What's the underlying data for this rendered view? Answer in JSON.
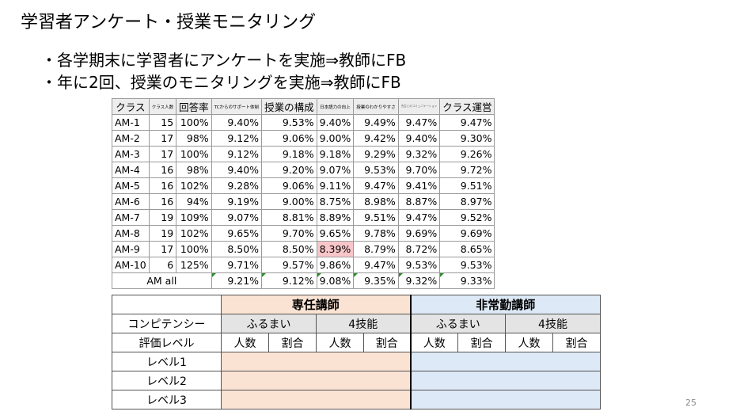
{
  "title": "学習者アンケート・授業モニタリング",
  "bullets": [
    "・各学期末に学習者にアンケートを実施⇒教師にFB",
    "・年に2回、授業のモニタリングを実施⇒教師にFB"
  ],
  "survey_table": {
    "headers": [
      "クラス",
      "クラス人数",
      "回答率",
      "TCからのサポート体制",
      "授業の構成",
      "日本語力の向上",
      "授業のわかりやすさ",
      "先生とのコミュニケーション",
      "クラス運営"
    ],
    "rows": [
      [
        "AM-1",
        "15",
        "100%",
        "9.40%",
        "9.53%",
        "9.40%",
        "9.49%",
        "9.47%",
        "9.47%"
      ],
      [
        "AM-2",
        "17",
        "98%",
        "9.12%",
        "9.06%",
        "9.00%",
        "9.42%",
        "9.40%",
        "9.30%"
      ],
      [
        "AM-3",
        "17",
        "100%",
        "9.12%",
        "9.18%",
        "9.18%",
        "9.29%",
        "9.32%",
        "9.26%"
      ],
      [
        "AM-4",
        "16",
        "98%",
        "9.40%",
        "9.20%",
        "9.07%",
        "9.53%",
        "9.70%",
        "9.72%"
      ],
      [
        "AM-5",
        "16",
        "102%",
        "9.28%",
        "9.06%",
        "9.11%",
        "9.47%",
        "9.41%",
        "9.51%"
      ],
      [
        "AM-6",
        "16",
        "94%",
        "9.19%",
        "9.00%",
        "8.75%",
        "8.98%",
        "8.87%",
        "8.97%"
      ],
      [
        "AM-7",
        "19",
        "109%",
        "9.07%",
        "8.81%",
        "8.89%",
        "9.51%",
        "9.47%",
        "9.52%"
      ],
      [
        "AM-8",
        "19",
        "102%",
        "9.65%",
        "9.70%",
        "9.65%",
        "9.78%",
        "9.69%",
        "9.69%"
      ],
      [
        "AM-9",
        "17",
        "100%",
        "8.50%",
        "8.50%",
        "8.39%",
        "8.79%",
        "8.72%",
        "8.65%"
      ],
      [
        "AM-10",
        "6",
        "125%",
        "9.71%",
        "9.57%",
        "9.86%",
        "9.47%",
        "9.53%",
        "9.53%"
      ]
    ],
    "total_label": "AM all",
    "total_values": [
      "9.21%",
      "9.12%",
      "9.08%",
      "9.35%",
      "9.32%",
      "9.33%"
    ]
  },
  "eval_table": {
    "group_a": "専任講師",
    "group_b": "非常勤講師",
    "competency_label": "コンピテンシー",
    "competencies": [
      "ふるまい",
      "4技能",
      "ふるまい",
      "4技能"
    ],
    "level_label": "評価レベル",
    "sub_cols": [
      "人数",
      "割合",
      "人数",
      "割合",
      "人数",
      "割合",
      "人数",
      "割合"
    ],
    "levels": [
      "レベル1",
      "レベル2",
      "レベル3"
    ]
  },
  "page_number": "25",
  "colors": {
    "highlight": "#f8c6c9",
    "fulltime": "#fbe3d4",
    "parttime": "#dde9f6"
  }
}
